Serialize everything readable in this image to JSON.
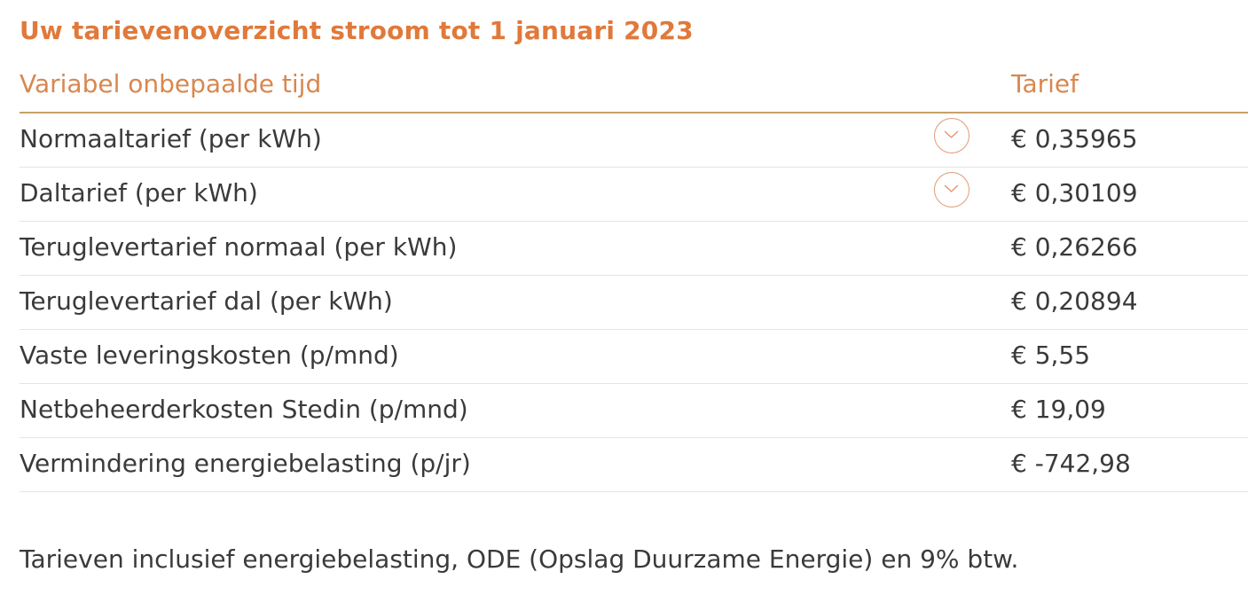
{
  "title": "Uw tarievenoverzicht stroom tot 1 januari 2023",
  "table": {
    "header_left": "Variabel onbepaalde tijd",
    "header_right": "Tarief",
    "rows": [
      {
        "label": "Normaaltarief (per kWh)",
        "value": "€ 0,35965",
        "expandable": true
      },
      {
        "label": "Daltarief (per kWh)",
        "value": "€ 0,30109",
        "expandable": true
      },
      {
        "label": "Teruglevertarief normaal (per kWh)",
        "value": "€ 0,26266",
        "expandable": false
      },
      {
        "label": "Teruglevertarief dal (per kWh)",
        "value": "€ 0,20894",
        "expandable": false
      },
      {
        "label": "Vaste leveringskosten (p/mnd)",
        "value": "€ 5,55",
        "expandable": false
      },
      {
        "label": "Netbeheerderkosten Stedin (p/mnd)",
        "value": "€ 19,09",
        "expandable": false
      },
      {
        "label": "Vermindering energiebelasting (p/jr)",
        "value": "€ -742,98",
        "expandable": false
      }
    ]
  },
  "footnote": "Tarieven inclusief energiebelasting, ODE (Opslag Duurzame Energie) en 9% btw.",
  "colors": {
    "accent": "#e0793a",
    "header_text": "#d9874f",
    "header_rule": "#c8a26a",
    "body_text": "#3a3a3a",
    "row_divider": "#e4e4e4"
  },
  "icons": {
    "expand": "chevron-down-icon"
  }
}
